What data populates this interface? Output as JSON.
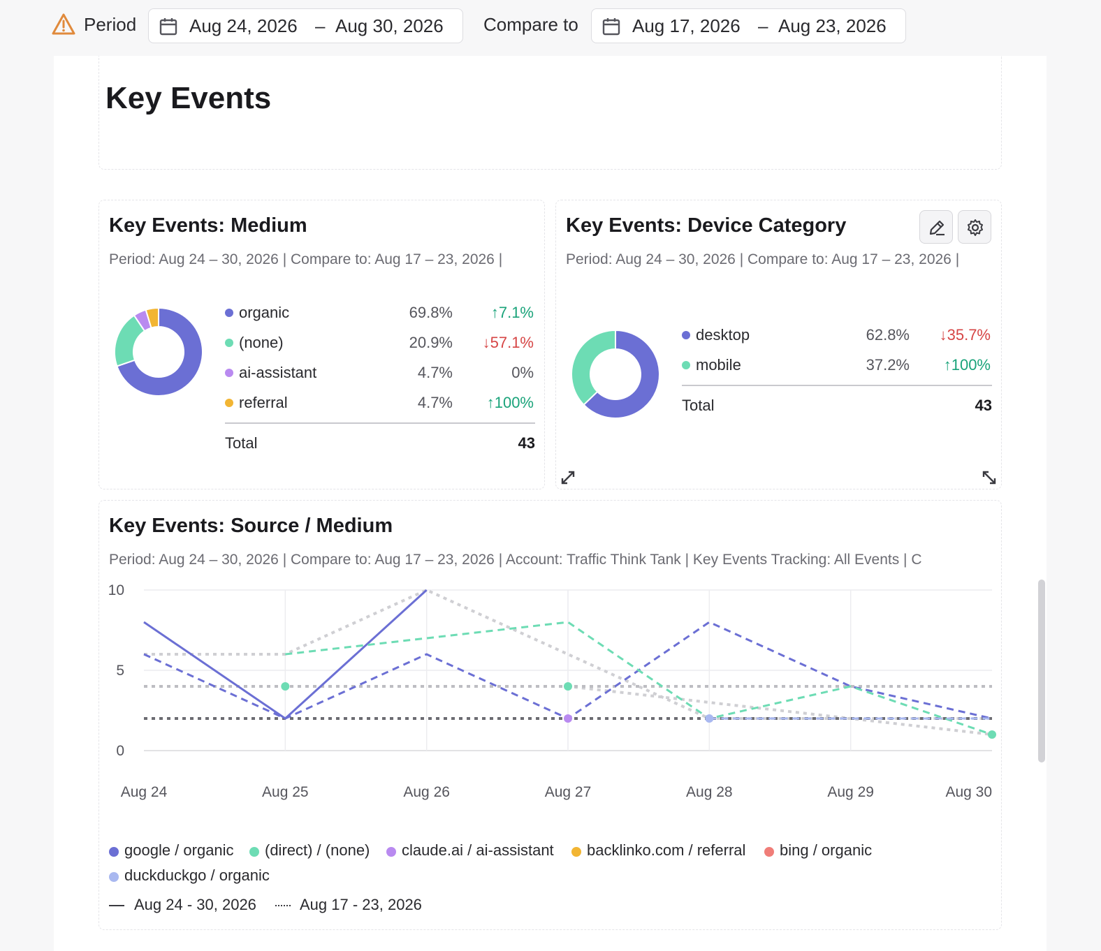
{
  "topbar": {
    "period_label": "Period",
    "period_start": "Aug 24, 2026",
    "period_end": "Aug 30, 2026",
    "compare_label": "Compare to",
    "compare_start": "Aug 17, 2026",
    "compare_end": "Aug 23, 2026",
    "dash": "–"
  },
  "header": {
    "title": "Key Events"
  },
  "medium_card": {
    "title": "Key Events: Medium",
    "subtitle": "Period: Aug 24 – 30, 2026 | Compare to: Aug 17 – 23, 2026 |",
    "rows": [
      {
        "name": "organic",
        "pct": "69.8%",
        "change": "↑7.1%",
        "dir": "up",
        "color": "#6b6fd4",
        "share": 69.8
      },
      {
        "name": "(none)",
        "pct": "20.9%",
        "change": "↓57.1%",
        "dir": "down",
        "color": "#6ddcb4",
        "share": 20.9
      },
      {
        "name": "ai-assistant",
        "pct": "4.7%",
        "change": "0%",
        "dir": "neutral",
        "color": "#b98af0",
        "share": 4.7
      },
      {
        "name": "referral",
        "pct": "4.7%",
        "change": "↑100%",
        "dir": "up",
        "color": "#f2b533",
        "share": 4.7
      }
    ],
    "total_label": "Total",
    "total_value": "43"
  },
  "device_card": {
    "title": "Key Events: Device Category",
    "subtitle": "Period: Aug 24 – 30, 2026 | Compare to: Aug 17 – 23, 2026 |",
    "rows": [
      {
        "name": "desktop",
        "pct": "62.8%",
        "change": "↓35.7%",
        "dir": "down",
        "color": "#6b6fd4",
        "share": 62.8
      },
      {
        "name": "mobile",
        "pct": "37.2%",
        "change": "↑100%",
        "dir": "up",
        "color": "#6ddcb4",
        "share": 37.2
      }
    ],
    "total_label": "Total",
    "total_value": "43",
    "edit_icon": "pencil-icon",
    "settings_icon": "gear-icon"
  },
  "source_card": {
    "title": "Key Events: Source / Medium",
    "subtitle": "Period: Aug 24 – 30, 2026 | Compare to: Aug 17 – 23, 2026 | Account: Traffic Think Tank | Key Events Tracking: All Events | C",
    "period_legend_current": "Aug 24 - 30, 2026",
    "period_legend_previous": "Aug 17 - 23, 2026"
  },
  "chart_data": {
    "type": "line",
    "categories": [
      "Aug 24",
      "Aug 25",
      "Aug 26",
      "Aug 27",
      "Aug 28",
      "Aug 29",
      "Aug 30"
    ],
    "ylim": [
      0,
      10
    ],
    "yticks": [
      "0",
      "5",
      "10"
    ],
    "grid": true,
    "legend_placement": "bottom",
    "series": [
      {
        "name": "google / organic",
        "color": "#6b6fd4",
        "period": "current",
        "values": [
          8,
          2,
          10,
          null,
          null,
          null,
          null
        ]
      },
      {
        "name": "google / organic",
        "color": "#6b6fd4",
        "period": "current-dashed",
        "values": [
          6,
          2,
          6,
          2,
          8,
          4,
          2
        ]
      },
      {
        "name": "(direct) / (none)",
        "color": "#6ddcb4",
        "period": "current-dashed",
        "values": [
          null,
          6,
          7,
          8,
          2,
          4,
          1
        ]
      },
      {
        "name": "claude.ai / ai-assistant",
        "color": "#b98af0",
        "period": "current-dashed",
        "values": [
          null,
          null,
          null,
          2,
          null,
          null,
          null
        ]
      },
      {
        "name": "duckduckgo / organic",
        "color": "#a9b8f0",
        "period": "current-dashed",
        "values": [
          null,
          null,
          null,
          null,
          2,
          2,
          2
        ]
      },
      {
        "name": "Aug 17 - 23, 2026",
        "color": "#cfcfd3",
        "period": "previous",
        "values": [
          6,
          6,
          10,
          6,
          2,
          2,
          1
        ]
      },
      {
        "name": "Aug 17 - 23, 2026",
        "color": "#cfcfd3",
        "period": "previous",
        "values": [
          4,
          4,
          4,
          4,
          3,
          2,
          2
        ]
      },
      {
        "name": "Aug 17 - 23, 2026",
        "color": "#bdbdc2",
        "period": "previous",
        "values": [
          4,
          4,
          4,
          4,
          4,
          4,
          4
        ]
      },
      {
        "name": "Aug 17 - 23, 2026",
        "color": "#6c6c72",
        "period": "previous",
        "values": [
          2,
          2,
          2,
          2,
          2,
          2,
          2
        ]
      }
    ],
    "markers": [
      {
        "x": "Aug 25",
        "y": 4,
        "color": "#6ddcb4"
      },
      {
        "x": "Aug 27",
        "y": 4,
        "color": "#6ddcb4"
      },
      {
        "x": "Aug 27",
        "y": 2,
        "color": "#b98af0"
      },
      {
        "x": "Aug 28",
        "y": 2,
        "color": "#a9b8f0"
      },
      {
        "x": "Aug 30",
        "y": 1,
        "color": "#6ddcb4"
      }
    ],
    "legend": [
      {
        "name": "google / organic",
        "color": "#6b6fd4"
      },
      {
        "name": "(direct) / (none)",
        "color": "#6ddcb4"
      },
      {
        "name": "claude.ai / ai-assistant",
        "color": "#b98af0"
      },
      {
        "name": "backlinko.com / referral",
        "color": "#f2b533"
      },
      {
        "name": "bing / organic",
        "color": "#f07d78"
      },
      {
        "name": "duckduckgo / organic",
        "color": "#a9b8f0"
      }
    ]
  }
}
